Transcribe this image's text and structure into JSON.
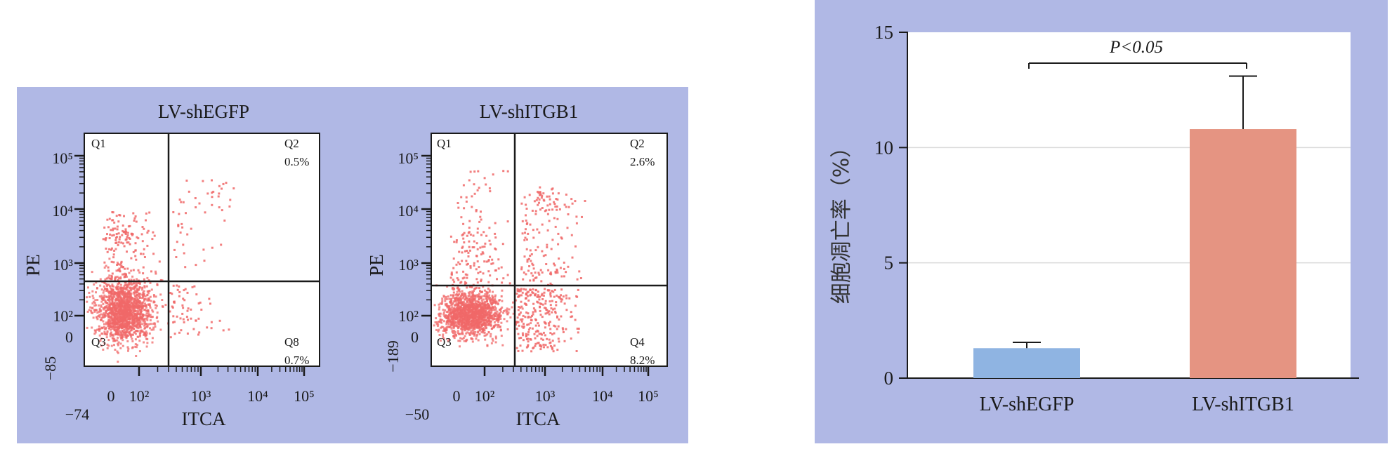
{
  "colors": {
    "panel_bg": "#b0b8e5",
    "plot_bg": "#ffffff",
    "dot": "#f06868",
    "dot_dense": "#f07070",
    "bar_egfp": "#8fb4e2",
    "bar_itgb1": "#e59482",
    "ink": "#1a1a1a"
  },
  "chart_data": [
    {
      "type": "scatter",
      "title": "LV-shEGFP",
      "xlabel": "ITCA",
      "ylabel": "PE",
      "axis_scale": "log",
      "x_ticks": [
        "0",
        "10²",
        "10³",
        "10⁴",
        "10⁵"
      ],
      "x_min_label": "−74",
      "y_ticks": [
        "0",
        "10²",
        "10³",
        "10⁴",
        "10⁵"
      ],
      "y_min_label": "−85",
      "quadrants": [
        {
          "name": "Q1",
          "value": ""
        },
        {
          "name": "Q2",
          "value": "0.5%"
        },
        {
          "name": "Q3",
          "value": ""
        },
        {
          "name": "Q8",
          "value": "0.7%"
        }
      ]
    },
    {
      "type": "scatter",
      "title": "LV-shITGB1",
      "xlabel": "ITCA",
      "ylabel": "PE",
      "axis_scale": "log",
      "x_ticks": [
        "0",
        "10²",
        "10³",
        "10⁴",
        "10⁵"
      ],
      "x_min_label": "−50",
      "y_ticks": [
        "0",
        "10²",
        "10³",
        "10⁴",
        "10⁵"
      ],
      "y_min_label": "−189",
      "quadrants": [
        {
          "name": "Q1",
          "value": ""
        },
        {
          "name": "Q2",
          "value": "2.6%"
        },
        {
          "name": "Q3",
          "value": ""
        },
        {
          "name": "Q4",
          "value": "8.2%"
        }
      ]
    },
    {
      "type": "bar",
      "categories": [
        "LV-shEGFP",
        "LV-shITGB1"
      ],
      "values": [
        1.3,
        10.8
      ],
      "errors": [
        0.25,
        2.3
      ],
      "ylabel": "细胞凋亡率（%）",
      "ylim": [
        0,
        15
      ],
      "yticks": [
        0,
        5,
        10,
        15
      ],
      "grid": true,
      "annotation": "P<0.05"
    }
  ]
}
